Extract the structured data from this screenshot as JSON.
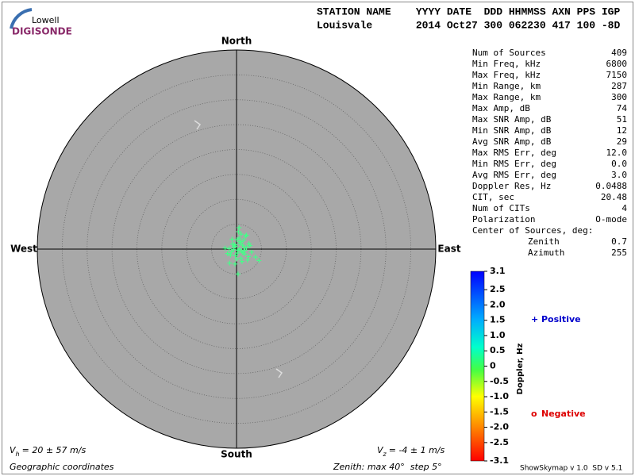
{
  "logo": {
    "top": "Lowell",
    "bottom": "DIGISONDE"
  },
  "header": {
    "columns": "STATION NAME    YYYY DATE  DDD HHMMSS AXN PPS IGP",
    "values": "Louisvale       2014 Oct27 300 062230 417 100 -8D"
  },
  "stats": {
    "rows": [
      [
        "Num of Sources",
        409
      ],
      [
        "Min Freq, kHz",
        6800
      ],
      [
        "Max Freq, kHz",
        7150
      ],
      [
        "Min Range, km",
        287
      ],
      [
        "Max Range, km",
        300
      ],
      [
        "Max Amp, dB",
        74
      ],
      [
        "Max SNR Amp, dB",
        51
      ],
      [
        "Min SNR Amp, dB",
        12
      ],
      [
        "Avg SNR Amp, dB",
        29
      ],
      [
        "Max RMS Err, deg",
        "12.0"
      ],
      [
        "Min RMS Err, deg",
        "0.0"
      ],
      [
        "Avg RMS Err, deg",
        "3.0"
      ],
      [
        "Doppler Res, Hz",
        0.0488
      ],
      [
        "CIT, sec",
        20.48
      ],
      [
        "Num of CITs",
        4
      ],
      [
        "Polarization",
        "O-mode"
      ]
    ],
    "center_title": "Center of Sources, deg:",
    "center_rows": [
      [
        "Zenith",
        0.7
      ],
      [
        "Azimuth",
        255
      ]
    ]
  },
  "skymap": {
    "directions": {
      "north": "North",
      "south": "South",
      "east": "East",
      "west": "West"
    },
    "zenith_label": "Zenith: max",
    "zenith_max": 40,
    "degree_sign": "°",
    "step_label": "step",
    "zenith_step": 5,
    "coordinates": "Geographic coordinates",
    "vh": {
      "symbol": "V",
      "sub": "h",
      "text": "= 20 ± 57 m/s"
    },
    "vz": {
      "symbol": "V",
      "sub": "z",
      "text": "= -4 ± 1 m/s"
    },
    "point_color": "#44ff88",
    "points": {
      "east": [
        -0.5,
        0.3,
        1.2,
        -1.0,
        0.8,
        1.6,
        -0.2,
        0.5,
        2.0,
        -1.5,
        0.0,
        1.0,
        2.4,
        -0.8,
        0.6,
        1.4,
        -2.3,
        3.0,
        0.2,
        1.8,
        -0.4,
        0.9,
        2.7,
        -1.2,
        0.4,
        1.1,
        -0.6,
        1.5,
        0.7,
        -1.8,
        2.2,
        0.1,
        3.8,
        -0.9,
        1.3,
        0.5,
        2.5,
        -0.3,
        0.9,
        4.5,
        -1.4,
        1.7,
        0.3,
        -0.2,
        2.0
      ],
      "north": [
        0.5,
        -0.2,
        0.8,
        -0.5,
        1.5,
        -1.0,
        -1.3,
        2.2,
        0.3,
        0.1,
        -2.0,
        -0.4,
        -1.5,
        1.0,
        0.0,
        1.8,
        0.2,
        -0.6,
        -0.8,
        2.6,
        0.9,
        -1.8,
        0.7,
        -1.2,
        3.5,
        -2.5,
        -0.1,
        0.4,
        1.2,
        -0.9,
        -2.2,
        1.9,
        -1.6,
        2.0,
        -0.7,
        4.3,
        1.1,
        -3.0,
        3.0,
        -2.3,
        -2.8,
        -0.2,
        -5.0,
        0.6,
        2.8
      ]
    }
  },
  "colorbar": {
    "label": "Doppler, Hz",
    "lim": [
      -3.1,
      3.1
    ],
    "ticks": [
      3.1,
      2.5,
      {
        "value": 2,
        "label": "2.0"
      },
      1.5,
      {
        "value": 1,
        "label": "1.0"
      },
      0.5,
      0,
      -0.5,
      {
        "value": -1,
        "label": "-1.0"
      },
      -1.5,
      {
        "value": -2,
        "label": "-2.0"
      },
      -2.5,
      -3.1
    ],
    "positive": {
      "symbol": "+",
      "text": "Positive",
      "color": "#0000cc"
    },
    "negative": {
      "symbol": "o",
      "text": "Negative",
      "color": "#dd0000"
    }
  },
  "footer": {
    "version": "ShowSkymap v 1.0  SD v 5.1"
  }
}
